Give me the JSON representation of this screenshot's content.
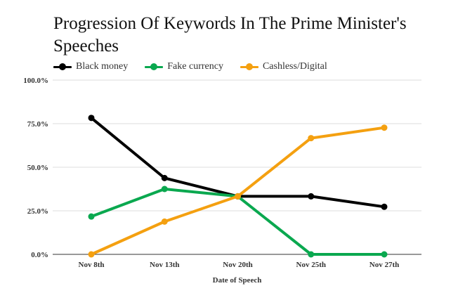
{
  "chart_data": {
    "type": "line",
    "title": "Progression Of Keywords In The Prime Minister's Speeches",
    "xlabel": "Date of Speech",
    "ylabel": "",
    "categories": [
      "Nov 8th",
      "Nov 13th",
      "Nov 20th",
      "Nov 25th",
      "Nov 27th"
    ],
    "y_ticks": [
      "0.0%",
      "25.0%",
      "50.0%",
      "75.0%",
      "100.0%"
    ],
    "ylim": [
      0,
      100
    ],
    "grid": true,
    "legend_position": "top-left",
    "series": [
      {
        "name": "Black money",
        "color": "#000000",
        "values": [
          78.3,
          43.8,
          33.3,
          33.3,
          27.3
        ]
      },
      {
        "name": "Fake currency",
        "color": "#0aa84f",
        "values": [
          21.7,
          37.5,
          33.3,
          0,
          0
        ]
      },
      {
        "name": "Cashless/Digital",
        "color": "#f4a010",
        "values": [
          0,
          18.8,
          33.3,
          66.7,
          72.7
        ]
      }
    ]
  }
}
